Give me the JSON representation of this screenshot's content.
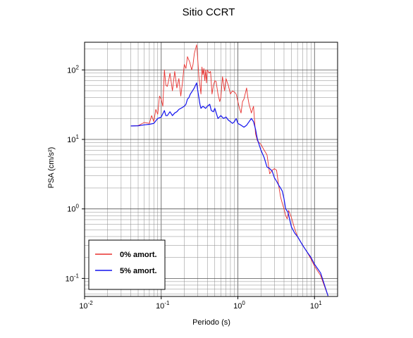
{
  "chart_data": {
    "type": "line",
    "title": "Sitio CCRT",
    "xlabel": "Periodo (s)",
    "ylabel": "PSA (cm/s²)",
    "xscale": "log",
    "yscale": "log",
    "xlim": [
      0.01,
      20
    ],
    "ylim": [
      0.055,
      250
    ],
    "grid": true,
    "legend_position": "bottom-left",
    "x_ticks": [
      {
        "value": 0.01,
        "base": "10",
        "exp": "-2"
      },
      {
        "value": 0.1,
        "base": "10",
        "exp": "-1"
      },
      {
        "value": 1,
        "base": "10",
        "exp": "0"
      },
      {
        "value": 10,
        "base": "10",
        "exp": "1"
      }
    ],
    "y_ticks": [
      {
        "value": 0.1,
        "base": "10",
        "exp": "-1"
      },
      {
        "value": 1,
        "base": "10",
        "exp": "0"
      },
      {
        "value": 10,
        "base": "10",
        "exp": "1"
      },
      {
        "value": 100,
        "base": "10",
        "exp": "2"
      }
    ],
    "series": [
      {
        "name": "0% amort.",
        "color": "#e8312e",
        "points": [
          [
            0.04,
            15.6
          ],
          [
            0.05,
            15.8
          ],
          [
            0.06,
            17.5
          ],
          [
            0.07,
            17
          ],
          [
            0.075,
            22
          ],
          [
            0.08,
            18
          ],
          [
            0.085,
            27
          ],
          [
            0.09,
            23
          ],
          [
            0.095,
            42
          ],
          [
            0.1,
            38
          ],
          [
            0.105,
            30
          ],
          [
            0.11,
            100
          ],
          [
            0.115,
            60
          ],
          [
            0.12,
            58
          ],
          [
            0.125,
            70
          ],
          [
            0.13,
            90
          ],
          [
            0.14,
            50
          ],
          [
            0.15,
            95
          ],
          [
            0.16,
            55
          ],
          [
            0.17,
            75
          ],
          [
            0.18,
            42
          ],
          [
            0.19,
            68
          ],
          [
            0.2,
            120
          ],
          [
            0.21,
            105
          ],
          [
            0.22,
            155
          ],
          [
            0.235,
            130
          ],
          [
            0.25,
            100
          ],
          [
            0.26,
            120
          ],
          [
            0.27,
            170
          ],
          [
            0.28,
            200
          ],
          [
            0.29,
            230
          ],
          [
            0.3,
            140
          ],
          [
            0.31,
            80
          ],
          [
            0.32,
            60
          ],
          [
            0.33,
            45
          ],
          [
            0.34,
            110
          ],
          [
            0.35,
            85
          ],
          [
            0.36,
            105
          ],
          [
            0.37,
            70
          ],
          [
            0.38,
            100
          ],
          [
            0.39,
            65
          ],
          [
            0.4,
            100
          ],
          [
            0.42,
            90
          ],
          [
            0.44,
            95
          ],
          [
            0.46,
            45
          ],
          [
            0.48,
            60
          ],
          [
            0.5,
            70
          ],
          [
            0.52,
            68
          ],
          [
            0.55,
            45
          ],
          [
            0.58,
            35
          ],
          [
            0.6,
            40
          ],
          [
            0.63,
            80
          ],
          [
            0.67,
            50
          ],
          [
            0.7,
            75
          ],
          [
            0.75,
            60
          ],
          [
            0.8,
            45
          ],
          [
            0.85,
            50
          ],
          [
            0.9,
            48
          ],
          [
            0.95,
            45
          ],
          [
            1.0,
            35
          ],
          [
            1.05,
            28
          ],
          [
            1.1,
            24
          ],
          [
            1.15,
            35
          ],
          [
            1.2,
            38
          ],
          [
            1.3,
            55
          ],
          [
            1.35,
            40
          ],
          [
            1.4,
            32
          ],
          [
            1.45,
            28
          ],
          [
            1.5,
            24
          ],
          [
            1.6,
            30
          ],
          [
            1.7,
            12
          ],
          [
            1.8,
            9.5
          ],
          [
            2.0,
            8.5
          ],
          [
            2.2,
            7
          ],
          [
            2.4,
            6
          ],
          [
            2.6,
            3.2
          ],
          [
            2.8,
            3.6
          ],
          [
            3.0,
            3.8
          ],
          [
            3.2,
            3.6
          ],
          [
            3.4,
            2.2
          ],
          [
            3.6,
            1.5
          ],
          [
            3.8,
            1.2
          ],
          [
            4.0,
            1.0
          ],
          [
            4.2,
            0.8
          ],
          [
            4.4,
            0.72
          ],
          [
            4.6,
            0.95
          ],
          [
            5.0,
            0.75
          ],
          [
            5.5,
            0.52
          ],
          [
            6.0,
            0.4
          ],
          [
            7.0,
            0.3
          ],
          [
            8.0,
            0.24
          ],
          [
            9.0,
            0.19
          ],
          [
            10.0,
            0.15
          ],
          [
            12.0,
            0.11
          ],
          [
            15.0,
            0.056
          ]
        ]
      },
      {
        "name": "5% amort.",
        "color": "#1212ee",
        "points": [
          [
            0.04,
            15.6
          ],
          [
            0.05,
            15.7
          ],
          [
            0.06,
            16.2
          ],
          [
            0.07,
            16.5
          ],
          [
            0.08,
            17
          ],
          [
            0.09,
            20
          ],
          [
            0.1,
            21
          ],
          [
            0.11,
            26
          ],
          [
            0.115,
            22
          ],
          [
            0.12,
            22
          ],
          [
            0.13,
            25
          ],
          [
            0.14,
            22
          ],
          [
            0.15,
            24
          ],
          [
            0.16,
            25
          ],
          [
            0.17,
            27
          ],
          [
            0.18,
            28
          ],
          [
            0.19,
            29
          ],
          [
            0.2,
            30
          ],
          [
            0.21,
            32
          ],
          [
            0.22,
            38
          ],
          [
            0.23,
            40
          ],
          [
            0.24,
            45
          ],
          [
            0.25,
            48
          ],
          [
            0.27,
            55
          ],
          [
            0.28,
            60
          ],
          [
            0.29,
            65
          ],
          [
            0.3,
            50
          ],
          [
            0.31,
            40
          ],
          [
            0.32,
            32
          ],
          [
            0.33,
            28
          ],
          [
            0.34,
            29
          ],
          [
            0.35,
            30
          ],
          [
            0.38,
            28
          ],
          [
            0.4,
            30
          ],
          [
            0.43,
            32
          ],
          [
            0.45,
            26
          ],
          [
            0.48,
            25
          ],
          [
            0.5,
            28
          ],
          [
            0.55,
            20
          ],
          [
            0.6,
            22
          ],
          [
            0.65,
            20
          ],
          [
            0.7,
            21
          ],
          [
            0.75,
            19
          ],
          [
            0.8,
            18
          ],
          [
            0.85,
            17
          ],
          [
            0.9,
            18
          ],
          [
            0.95,
            20
          ],
          [
            1.0,
            17
          ],
          [
            1.1,
            16
          ],
          [
            1.2,
            15
          ],
          [
            1.3,
            16
          ],
          [
            1.4,
            18
          ],
          [
            1.5,
            20
          ],
          [
            1.6,
            18
          ],
          [
            1.7,
            14
          ],
          [
            1.8,
            10
          ],
          [
            2.0,
            7
          ],
          [
            2.2,
            5.5
          ],
          [
            2.4,
            4
          ],
          [
            2.6,
            3.8
          ],
          [
            2.8,
            3.5
          ],
          [
            3.0,
            2.8
          ],
          [
            3.2,
            2.5
          ],
          [
            3.4,
            2.2
          ],
          [
            3.6,
            2.0
          ],
          [
            3.8,
            1.8
          ],
          [
            4.0,
            1.4
          ],
          [
            4.2,
            1.0
          ],
          [
            4.5,
            0.9
          ],
          [
            5.0,
            0.55
          ],
          [
            5.5,
            0.45
          ],
          [
            6.0,
            0.4
          ],
          [
            7.0,
            0.3
          ],
          [
            8.0,
            0.24
          ],
          [
            9.0,
            0.2
          ],
          [
            10.0,
            0.16
          ],
          [
            12.0,
            0.12
          ],
          [
            15.0,
            0.056
          ]
        ]
      }
    ]
  }
}
